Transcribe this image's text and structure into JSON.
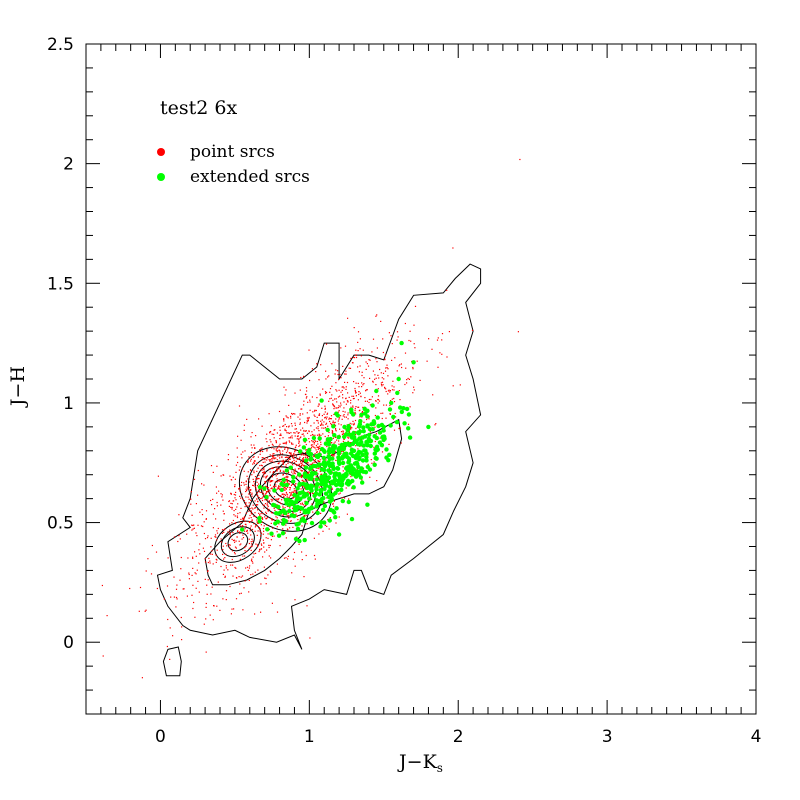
{
  "chart_data": {
    "type": "scatter",
    "title": "test2 6x",
    "xlabel": "J−K",
    "xlabel_subscript": "s",
    "ylabel": "J−H",
    "xlim": [
      -0.5,
      4
    ],
    "ylim": [
      -0.3,
      2.5
    ],
    "x_ticks": [
      0,
      1,
      2,
      3,
      4
    ],
    "x_tick_labels": [
      "0",
      "1",
      "2",
      "3",
      "4"
    ],
    "y_ticks": [
      0,
      0.5,
      1,
      1.5,
      2,
      2.5
    ],
    "y_tick_labels": [
      "0",
      "0.5",
      "1",
      "1.5",
      "2",
      "2.5"
    ],
    "grid": false,
    "legend_position": "top-left",
    "colors": {
      "point": "#ff0000",
      "extended": "#00ff00",
      "contour": "#000000"
    },
    "series": [
      {
        "name": "point srcs",
        "color": "#ff0000",
        "marker": "dot",
        "distribution": {
          "center": [
            0.9,
            0.72
          ],
          "sd_major": 0.4,
          "sd_minor": 0.13,
          "slope": 0.62,
          "count": 2200
        },
        "points": [
          [
            0.35,
            0.33
          ],
          [
            0.42,
            0.35
          ],
          [
            0.5,
            0.4
          ],
          [
            0.55,
            0.45
          ],
          [
            0.6,
            0.48
          ],
          [
            0.68,
            0.52
          ],
          [
            0.72,
            0.57
          ],
          [
            0.78,
            0.6
          ],
          [
            0.82,
            0.62
          ],
          [
            0.85,
            0.65
          ],
          [
            0.88,
            0.63
          ],
          [
            0.8,
            0.66
          ],
          [
            1.96,
            1.65
          ],
          [
            2.4,
            1.3
          ],
          [
            2.41,
            2.02
          ],
          [
            1.7,
            1.25
          ],
          [
            1.65,
            1.1
          ],
          [
            0.2,
            0.6
          ],
          [
            0.25,
            0.72
          ],
          [
            0.3,
            0.1
          ],
          [
            0.1,
            0.15
          ],
          [
            -0.1,
            0.3
          ],
          [
            0.9,
            0.18
          ],
          [
            1.0,
            0.02
          ]
        ]
      },
      {
        "name": "extended srcs",
        "color": "#00ff00",
        "marker": "circle",
        "distribution": {
          "center": [
            1.15,
            0.72
          ],
          "sd_major": 0.22,
          "sd_minor": 0.08,
          "slope": 0.55,
          "count": 450
        },
        "points": [
          [
            1.1,
            0.72
          ],
          [
            1.2,
            0.75
          ],
          [
            1.05,
            0.68
          ],
          [
            1.25,
            0.7
          ],
          [
            1.3,
            0.8
          ],
          [
            1.4,
            0.85
          ],
          [
            1.5,
            0.9
          ],
          [
            1.55,
            1.0
          ],
          [
            1.6,
            1.1
          ],
          [
            1.62,
            1.25
          ],
          [
            1.45,
            1.05
          ],
          [
            1.35,
            0.95
          ],
          [
            1.15,
            0.6
          ],
          [
            1.1,
            0.5
          ],
          [
            1.2,
            0.45
          ],
          [
            1.0,
            0.6
          ],
          [
            1.7,
            1.17
          ],
          [
            1.8,
            0.9
          ]
        ]
      }
    ],
    "contours": [
      [
        [
          0.55,
          1.2
        ],
        [
          0.25,
          0.8
        ],
        [
          0.2,
          0.6
        ],
        [
          0.15,
          0.52
        ],
        [
          0.2,
          0.48
        ],
        [
          0.05,
          0.42
        ],
        [
          0.08,
          0.3
        ],
        [
          -0.02,
          0.28
        ],
        [
          0.0,
          0.22
        ],
        [
          0.05,
          0.15
        ],
        [
          0.15,
          0.07
        ],
        [
          0.2,
          0.05
        ],
        [
          0.35,
          0.03
        ],
        [
          0.5,
          0.05
        ],
        [
          0.6,
          0.02
        ],
        [
          0.78,
          0.0
        ],
        [
          0.9,
          0.03
        ],
        [
          0.95,
          -0.03
        ],
        [
          0.9,
          0.05
        ],
        [
          0.88,
          0.15
        ],
        [
          1.0,
          0.18
        ],
        [
          1.1,
          0.22
        ],
        [
          1.25,
          0.2
        ],
        [
          1.3,
          0.3
        ],
        [
          1.35,
          0.3
        ],
        [
          1.4,
          0.22
        ],
        [
          1.5,
          0.2
        ],
        [
          1.55,
          0.28
        ],
        [
          1.7,
          0.35
        ],
        [
          1.8,
          0.4
        ],
        [
          1.9,
          0.45
        ],
        [
          1.97,
          0.55
        ],
        [
          2.05,
          0.65
        ],
        [
          2.1,
          0.75
        ],
        [
          2.05,
          0.88
        ],
        [
          2.15,
          0.95
        ],
        [
          2.1,
          1.1
        ],
        [
          2.05,
          1.2
        ],
        [
          2.1,
          1.3
        ],
        [
          2.05,
          1.42
        ],
        [
          2.15,
          1.5
        ],
        [
          2.15,
          1.56
        ],
        [
          2.08,
          1.58
        ],
        [
          1.98,
          1.52
        ],
        [
          1.9,
          1.46
        ],
        [
          1.7,
          1.45
        ],
        [
          1.6,
          1.35
        ],
        [
          1.5,
          1.18
        ],
        [
          1.4,
          1.2
        ],
        [
          1.3,
          1.2
        ],
        [
          1.2,
          1.1
        ],
        [
          1.2,
          1.25
        ],
        [
          1.1,
          1.25
        ],
        [
          1.05,
          1.15
        ],
        [
          0.95,
          1.1
        ],
        [
          0.8,
          1.1
        ],
        [
          0.6,
          1.2
        ],
        [
          0.55,
          1.2
        ]
      ],
      [
        [
          0.05,
          -0.03
        ],
        [
          0.12,
          -0.02
        ],
        [
          0.14,
          -0.08
        ],
        [
          0.13,
          -0.14
        ],
        [
          0.04,
          -0.14
        ],
        [
          0.02,
          -0.08
        ],
        [
          0.05,
          -0.03
        ]
      ],
      [
        [
          0.32,
          0.28
        ],
        [
          0.3,
          0.35
        ],
        [
          0.4,
          0.42
        ],
        [
          0.55,
          0.5
        ],
        [
          0.62,
          0.6
        ],
        [
          0.68,
          0.65
        ],
        [
          0.78,
          0.72
        ],
        [
          0.88,
          0.78
        ],
        [
          0.98,
          0.79
        ],
        [
          1.05,
          0.78
        ],
        [
          1.12,
          0.77
        ],
        [
          1.2,
          0.8
        ],
        [
          1.35,
          0.86
        ],
        [
          1.45,
          0.88
        ],
        [
          1.6,
          0.93
        ],
        [
          1.62,
          0.85
        ],
        [
          1.56,
          0.72
        ],
        [
          1.5,
          0.65
        ],
        [
          1.4,
          0.62
        ],
        [
          1.3,
          0.62
        ],
        [
          1.2,
          0.6
        ],
        [
          1.1,
          0.58
        ],
        [
          1.0,
          0.55
        ],
        [
          0.95,
          0.45
        ],
        [
          0.88,
          0.4
        ],
        [
          0.8,
          0.35
        ],
        [
          0.7,
          0.3
        ],
        [
          0.58,
          0.26
        ],
        [
          0.45,
          0.24
        ],
        [
          0.35,
          0.24
        ],
        [
          0.32,
          0.28
        ]
      ]
    ],
    "density_peaks": [
      {
        "center": [
          0.84,
          0.64
        ],
        "levels": [
          [
            0.06,
            0.05
          ],
          [
            0.1,
            0.08
          ],
          [
            0.14,
            0.11
          ],
          [
            0.18,
            0.13
          ],
          [
            0.22,
            0.16
          ],
          [
            0.27,
            0.2
          ]
        ],
        "angle": -60
      },
      {
        "center": [
          0.52,
          0.42
        ],
        "levels": [
          [
            0.07,
            0.035
          ],
          [
            0.12,
            0.055
          ],
          [
            0.17,
            0.075
          ]
        ],
        "angle": -35
      }
    ]
  }
}
